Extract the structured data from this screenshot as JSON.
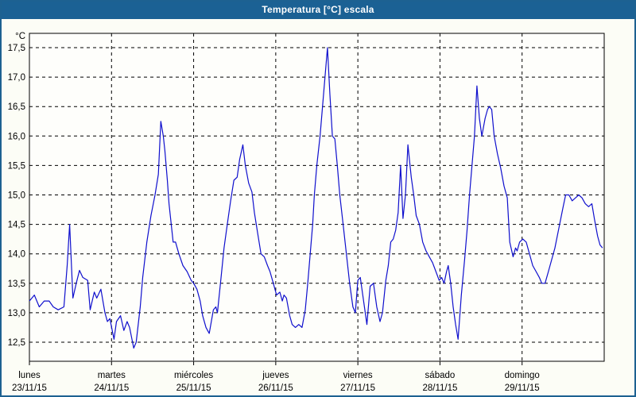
{
  "window": {
    "title": "Temperatura [°C] escala"
  },
  "colors": {
    "window_border": "#1d6191",
    "titlebar_bg": "#1b6194",
    "titlebar_text": "#ffffff",
    "panel_bg": "#fcfdf6",
    "plot_bg": "#fefefb",
    "frame": "#000000",
    "grid": "#000000",
    "line": "#0f0fcd"
  },
  "chart_data": {
    "type": "line",
    "title": "Temperatura [°C] escala",
    "ylabel": "°C",
    "xlabel": "",
    "legend": "none",
    "grid": "dashed",
    "ylim": [
      12.16,
      17.74
    ],
    "xlim_days": [
      0,
      7
    ],
    "y_ticks": [
      {
        "value": 17.5,
        "label": "17,5"
      },
      {
        "value": 17.0,
        "label": "17,0"
      },
      {
        "value": 16.5,
        "label": "16,5"
      },
      {
        "value": 16.0,
        "label": "16,0"
      },
      {
        "value": 15.5,
        "label": "15,5"
      },
      {
        "value": 15.0,
        "label": "15,0"
      },
      {
        "value": 14.5,
        "label": "14,5"
      },
      {
        "value": 14.0,
        "label": "14,0"
      },
      {
        "value": 13.5,
        "label": "13,5"
      },
      {
        "value": 13.0,
        "label": "13,0"
      },
      {
        "value": 12.5,
        "label": "12,5"
      }
    ],
    "x_days": [
      {
        "name": "lunes",
        "date": "23/11/15"
      },
      {
        "name": "martes",
        "date": "24/11/15"
      },
      {
        "name": "miércoles",
        "date": "25/11/15"
      },
      {
        "name": "jueves",
        "date": "26/11/15"
      },
      {
        "name": "viernes",
        "date": "27/11/15"
      },
      {
        "name": "sábado",
        "date": "28/11/15"
      },
      {
        "name": "domingo",
        "date": "29/11/15"
      }
    ],
    "series": [
      {
        "name": "Temperatura",
        "color": "#0f0fcd",
        "x_unit": "days since lunes 23/11/15 00:00",
        "y_unit": "°C",
        "points": [
          [
            0.0,
            13.2
          ],
          [
            0.06,
            13.3
          ],
          [
            0.12,
            13.1
          ],
          [
            0.18,
            13.2
          ],
          [
            0.24,
            13.2
          ],
          [
            0.29,
            13.1
          ],
          [
            0.35,
            13.05
          ],
          [
            0.42,
            13.1
          ],
          [
            0.46,
            13.8
          ],
          [
            0.49,
            14.5
          ],
          [
            0.53,
            13.25
          ],
          [
            0.57,
            13.5
          ],
          [
            0.61,
            13.72
          ],
          [
            0.65,
            13.6
          ],
          [
            0.71,
            13.55
          ],
          [
            0.74,
            13.05
          ],
          [
            0.79,
            13.35
          ],
          [
            0.82,
            13.25
          ],
          [
            0.87,
            13.4
          ],
          [
            0.92,
            13.0
          ],
          [
            0.95,
            12.85
          ],
          [
            0.98,
            12.9
          ],
          [
            1.03,
            12.55
          ],
          [
            1.06,
            12.85
          ],
          [
            1.11,
            12.95
          ],
          [
            1.15,
            12.7
          ],
          [
            1.19,
            12.85
          ],
          [
            1.22,
            12.75
          ],
          [
            1.27,
            12.4
          ],
          [
            1.3,
            12.5
          ],
          [
            1.35,
            13.1
          ],
          [
            1.38,
            13.6
          ],
          [
            1.43,
            14.2
          ],
          [
            1.48,
            14.65
          ],
          [
            1.53,
            15.0
          ],
          [
            1.57,
            15.35
          ],
          [
            1.6,
            16.25
          ],
          [
            1.63,
            16.0
          ],
          [
            1.65,
            15.75
          ],
          [
            1.68,
            15.25
          ],
          [
            1.7,
            14.85
          ],
          [
            1.75,
            14.2
          ],
          [
            1.78,
            14.2
          ],
          [
            1.82,
            14.0
          ],
          [
            1.87,
            13.8
          ],
          [
            1.92,
            13.7
          ],
          [
            1.97,
            13.55
          ],
          [
            2.0,
            13.5
          ],
          [
            2.04,
            13.4
          ],
          [
            2.08,
            13.2
          ],
          [
            2.11,
            12.95
          ],
          [
            2.15,
            12.75
          ],
          [
            2.19,
            12.65
          ],
          [
            2.24,
            13.05
          ],
          [
            2.27,
            13.1
          ],
          [
            2.29,
            13.0
          ],
          [
            2.33,
            13.55
          ],
          [
            2.37,
            14.1
          ],
          [
            2.41,
            14.5
          ],
          [
            2.45,
            14.9
          ],
          [
            2.49,
            15.25
          ],
          [
            2.53,
            15.3
          ],
          [
            2.56,
            15.6
          ],
          [
            2.6,
            15.85
          ],
          [
            2.63,
            15.5
          ],
          [
            2.67,
            15.2
          ],
          [
            2.71,
            15.05
          ],
          [
            2.74,
            14.7
          ],
          [
            2.78,
            14.35
          ],
          [
            2.82,
            14.0
          ],
          [
            2.86,
            13.95
          ],
          [
            2.9,
            13.8
          ],
          [
            2.93,
            13.7
          ],
          [
            2.97,
            13.5
          ],
          [
            3.01,
            13.3
          ],
          [
            3.05,
            13.35
          ],
          [
            3.08,
            13.2
          ],
          [
            3.1,
            13.3
          ],
          [
            3.13,
            13.25
          ],
          [
            3.17,
            12.95
          ],
          [
            3.2,
            12.8
          ],
          [
            3.24,
            12.75
          ],
          [
            3.28,
            12.8
          ],
          [
            3.32,
            12.75
          ],
          [
            3.36,
            13.05
          ],
          [
            3.39,
            13.5
          ],
          [
            3.42,
            14.0
          ],
          [
            3.45,
            14.5
          ],
          [
            3.47,
            15.0
          ],
          [
            3.5,
            15.5
          ],
          [
            3.54,
            16.0
          ],
          [
            3.57,
            16.5
          ],
          [
            3.6,
            17.0
          ],
          [
            3.63,
            17.5
          ],
          [
            3.66,
            16.7
          ],
          [
            3.69,
            16.0
          ],
          [
            3.72,
            15.95
          ],
          [
            3.75,
            15.5
          ],
          [
            3.78,
            15.0
          ],
          [
            3.82,
            14.5
          ],
          [
            3.86,
            14.0
          ],
          [
            3.9,
            13.5
          ],
          [
            3.94,
            13.1
          ],
          [
            3.97,
            13.0
          ],
          [
            4.0,
            13.55
          ],
          [
            4.03,
            13.6
          ],
          [
            4.06,
            13.3
          ],
          [
            4.08,
            13.1
          ],
          [
            4.11,
            12.8
          ],
          [
            4.15,
            13.45
          ],
          [
            4.19,
            13.5
          ],
          [
            4.23,
            13.1
          ],
          [
            4.27,
            12.85
          ],
          [
            4.3,
            13.0
          ],
          [
            4.34,
            13.55
          ],
          [
            4.37,
            13.8
          ],
          [
            4.4,
            14.2
          ],
          [
            4.43,
            14.25
          ],
          [
            4.46,
            14.4
          ],
          [
            4.49,
            14.7
          ],
          [
            4.52,
            15.5
          ],
          [
            4.55,
            14.6
          ],
          [
            4.58,
            15.0
          ],
          [
            4.61,
            15.85
          ],
          [
            4.65,
            15.3
          ],
          [
            4.68,
            15.0
          ],
          [
            4.71,
            14.65
          ],
          [
            4.75,
            14.5
          ],
          [
            4.79,
            14.2
          ],
          [
            4.83,
            14.05
          ],
          [
            4.87,
            13.95
          ],
          [
            4.91,
            13.85
          ],
          [
            4.95,
            13.7
          ],
          [
            4.99,
            13.55
          ],
          [
            5.02,
            13.6
          ],
          [
            5.05,
            13.5
          ],
          [
            5.08,
            13.7
          ],
          [
            5.1,
            13.8
          ],
          [
            5.13,
            13.5
          ],
          [
            5.16,
            13.1
          ],
          [
            5.19,
            12.8
          ],
          [
            5.22,
            12.55
          ],
          [
            5.26,
            13.3
          ],
          [
            5.3,
            13.9
          ],
          [
            5.33,
            14.4
          ],
          [
            5.36,
            15.0
          ],
          [
            5.39,
            15.5
          ],
          [
            5.42,
            16.0
          ],
          [
            5.45,
            16.85
          ],
          [
            5.48,
            16.3
          ],
          [
            5.51,
            16.0
          ],
          [
            5.55,
            16.3
          ],
          [
            5.58,
            16.45
          ],
          [
            5.6,
            16.5
          ],
          [
            5.63,
            16.45
          ],
          [
            5.66,
            16.0
          ],
          [
            5.7,
            15.7
          ],
          [
            5.74,
            15.45
          ],
          [
            5.78,
            15.15
          ],
          [
            5.82,
            14.95
          ],
          [
            5.85,
            14.2
          ],
          [
            5.89,
            13.95
          ],
          [
            5.92,
            14.1
          ],
          [
            5.94,
            14.05
          ],
          [
            5.97,
            14.2
          ],
          [
            6.01,
            14.25
          ],
          [
            6.05,
            14.2
          ],
          [
            6.09,
            14.0
          ],
          [
            6.13,
            13.8
          ],
          [
            6.17,
            13.7
          ],
          [
            6.21,
            13.6
          ],
          [
            6.24,
            13.5
          ],
          [
            6.28,
            13.5
          ],
          [
            6.32,
            13.7
          ],
          [
            6.36,
            13.9
          ],
          [
            6.4,
            14.1
          ],
          [
            6.45,
            14.45
          ],
          [
            6.5,
            14.8
          ],
          [
            6.53,
            15.0
          ],
          [
            6.57,
            15.0
          ],
          [
            6.61,
            14.9
          ],
          [
            6.65,
            14.95
          ],
          [
            6.69,
            15.0
          ],
          [
            6.73,
            14.95
          ],
          [
            6.77,
            14.85
          ],
          [
            6.81,
            14.8
          ],
          [
            6.85,
            14.85
          ],
          [
            6.88,
            14.6
          ],
          [
            6.92,
            14.3
          ],
          [
            6.95,
            14.15
          ],
          [
            6.98,
            14.1
          ]
        ]
      }
    ]
  }
}
